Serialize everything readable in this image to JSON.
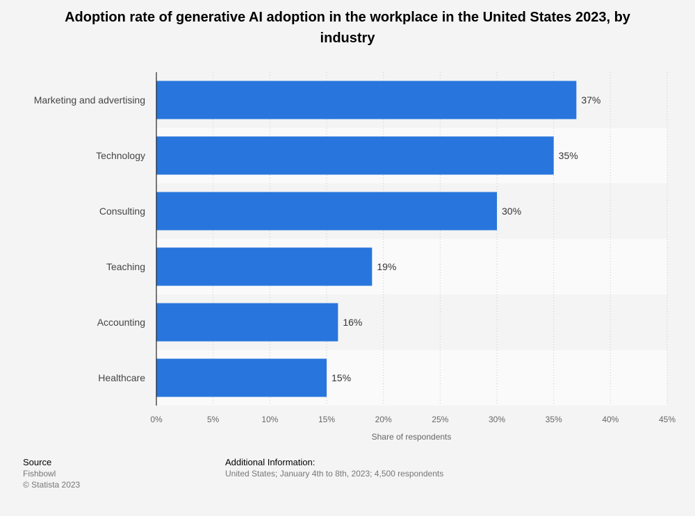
{
  "chart_data": {
    "type": "bar",
    "orientation": "horizontal",
    "title": "Adoption rate of generative AI adoption in the workplace in the United States 2023, by industry",
    "categories": [
      "Marketing and advertising",
      "Technology",
      "Consulting",
      "Teaching",
      "Accounting",
      "Healthcare"
    ],
    "values": [
      37,
      35,
      30,
      19,
      16,
      15
    ],
    "value_suffix": "%",
    "xlabel": "Share of respondents",
    "ylabel": "",
    "xlim": [
      0,
      45
    ],
    "ticks": [
      0,
      5,
      10,
      15,
      20,
      25,
      30,
      35,
      40,
      45
    ],
    "tick_labels": [
      "0%",
      "5%",
      "10%",
      "15%",
      "20%",
      "25%",
      "30%",
      "35%",
      "40%",
      "45%"
    ],
    "bar_color": "#2876dd",
    "grid": true
  },
  "footer": {
    "source_heading": "Source",
    "source_name": "Fishbowl",
    "copyright": "© Statista 2023",
    "info_heading": "Additional Information:",
    "info_text": "United States; January 4th to 8th, 2023; 4,500 respondents"
  }
}
